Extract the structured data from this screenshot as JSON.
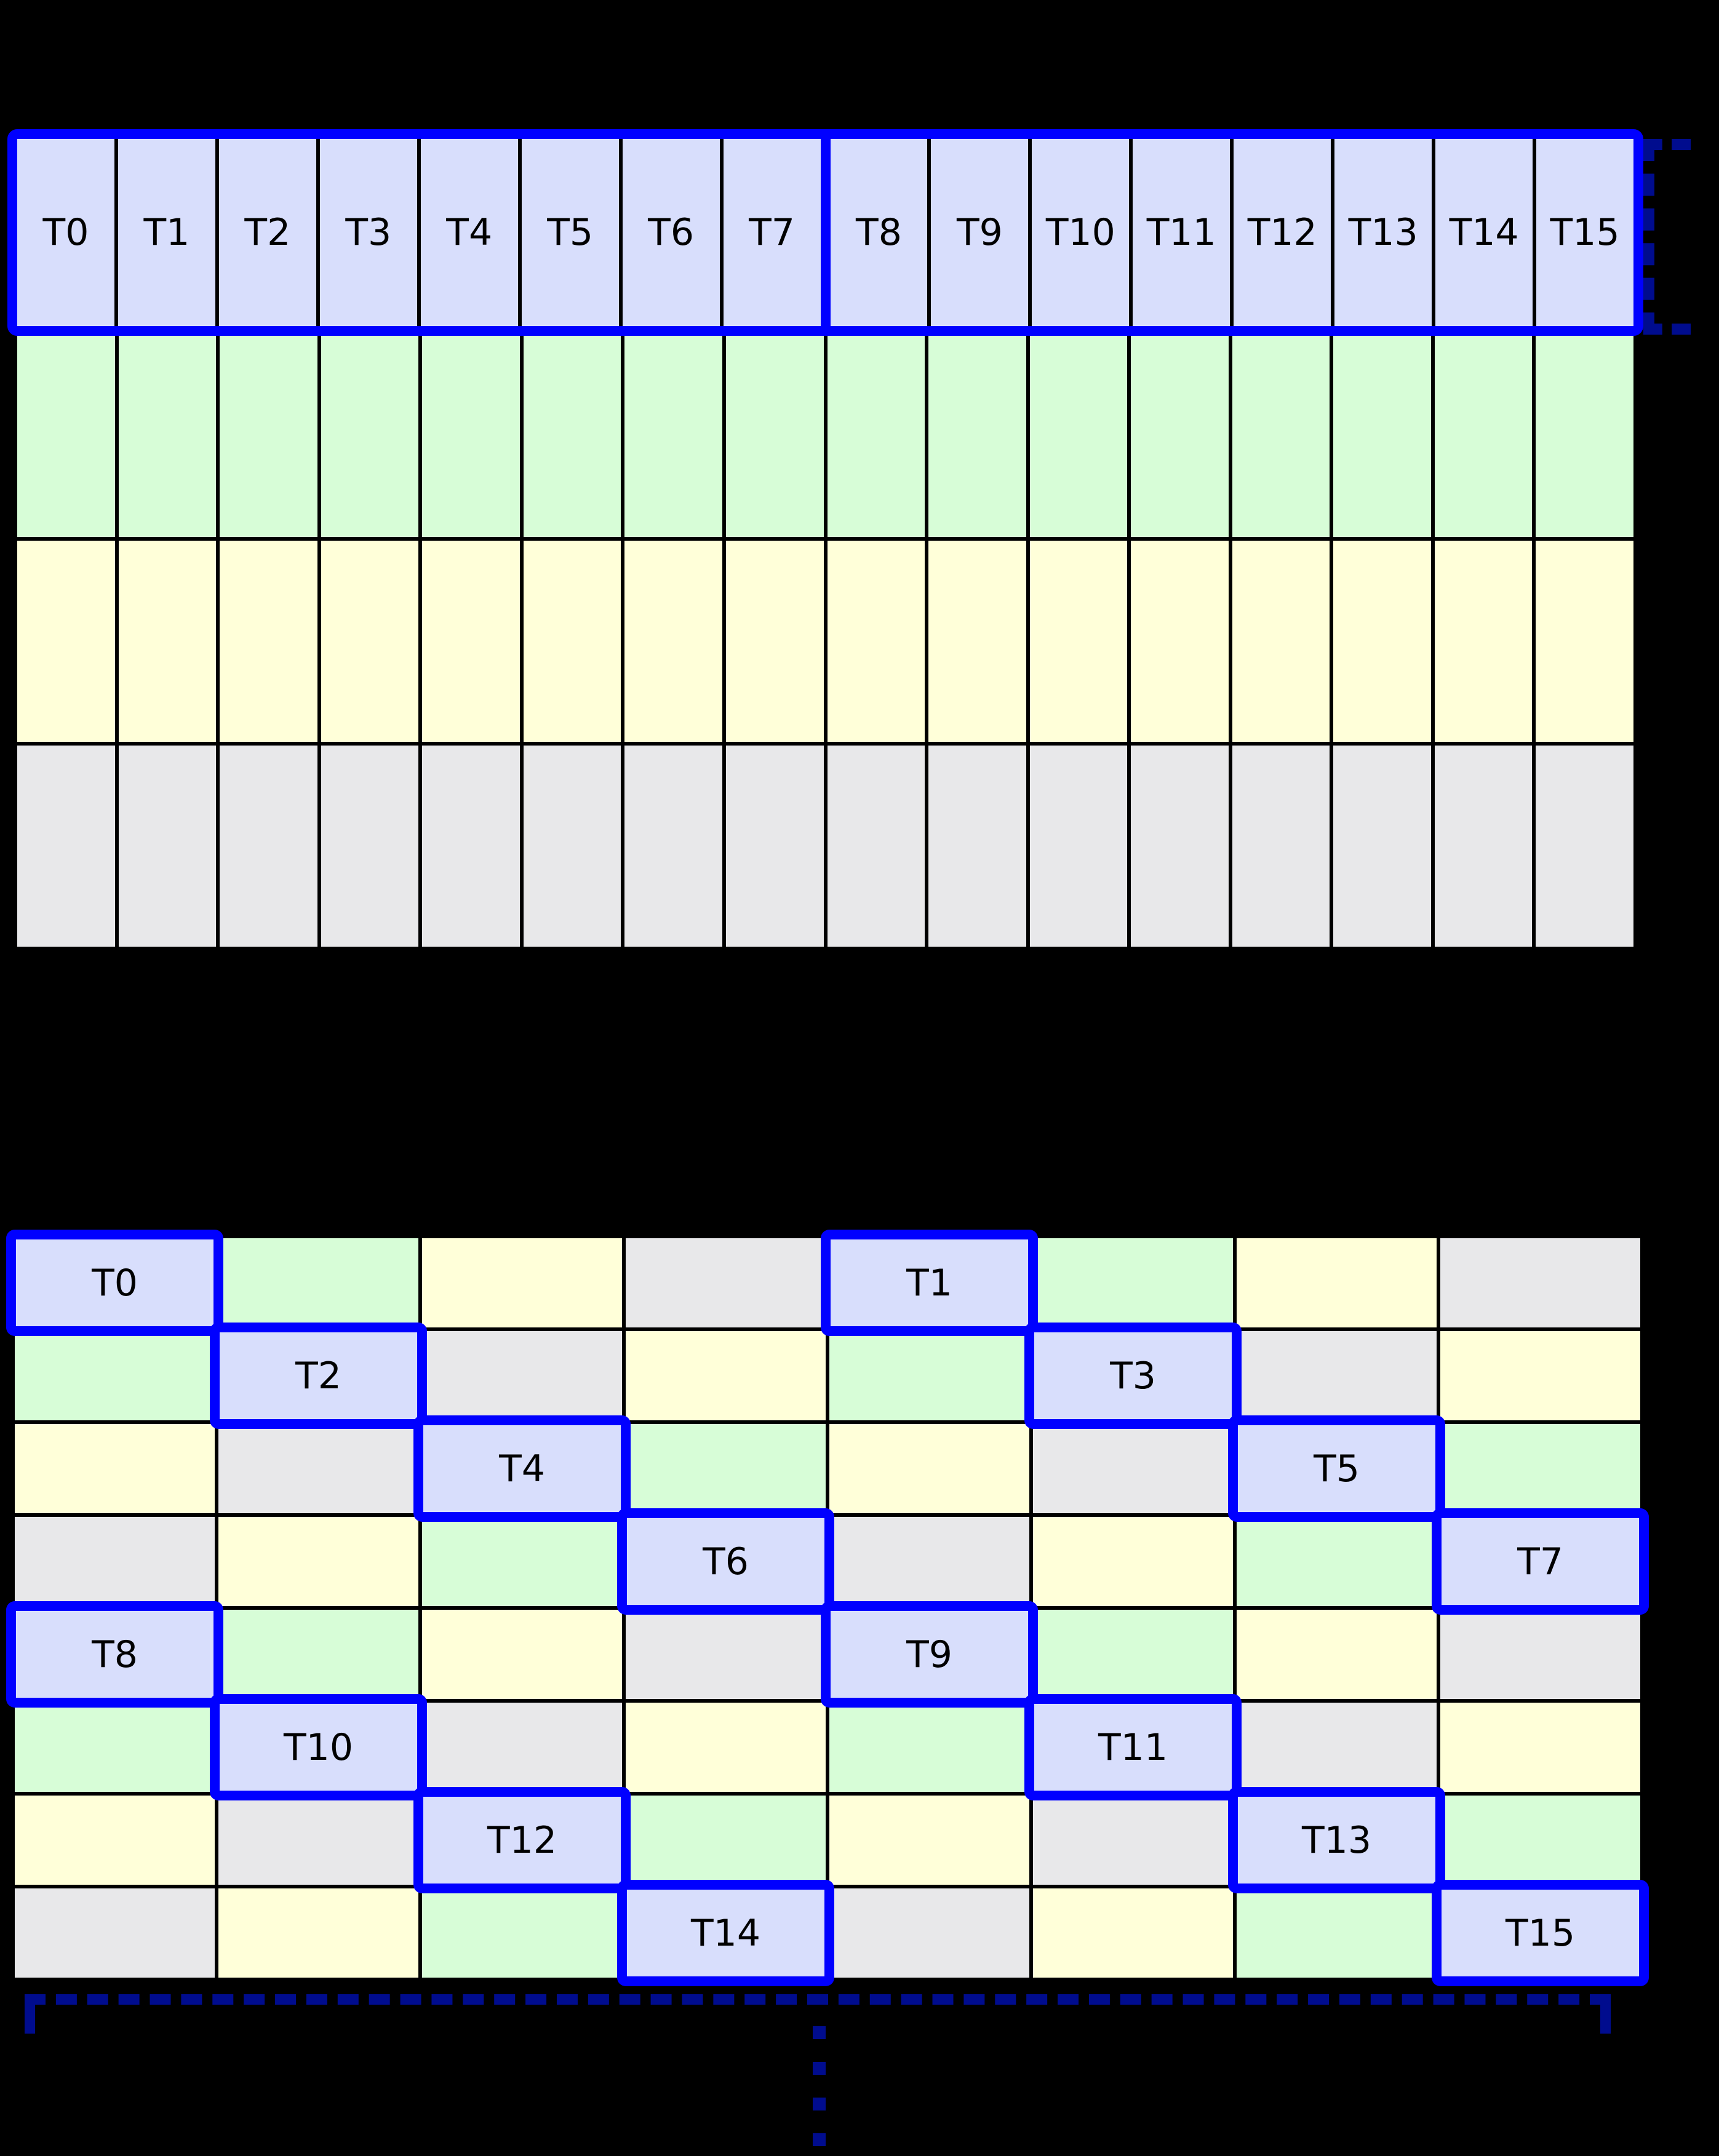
{
  "colors": {
    "background": "#000000",
    "grid_line": "#000000",
    "warp_border": "#0000ff",
    "bracket": "#000c8e",
    "palette": {
      "thread": "#d8defc",
      "green": "#d7fdd7",
      "yellow": "#ffffd9",
      "gray": "#e8e8ea"
    }
  },
  "top_grid": {
    "thread_groups": [
      {
        "threads": [
          "T0",
          "T1",
          "T2",
          "T3",
          "T4",
          "T5",
          "T6",
          "T7"
        ]
      },
      {
        "threads": [
          "T8",
          "T9",
          "T10",
          "T11",
          "T12",
          "T13",
          "T14",
          "T15"
        ]
      }
    ],
    "memory_rows": [
      "green",
      "yellow",
      "gray"
    ],
    "columns": 16
  },
  "right_bracket": {
    "icon": "dashed-bracket-icon",
    "style": "dashed",
    "color": "#000c8e"
  },
  "bottom_grid": {
    "rows": [
      [
        {
          "color": "thread",
          "label": "T0"
        },
        {
          "color": "green"
        },
        {
          "color": "yellow"
        },
        {
          "color": "gray"
        },
        {
          "color": "thread",
          "label": "T1"
        },
        {
          "color": "green"
        },
        {
          "color": "yellow"
        },
        {
          "color": "gray"
        }
      ],
      [
        {
          "color": "green"
        },
        {
          "color": "thread",
          "label": "T2"
        },
        {
          "color": "gray"
        },
        {
          "color": "yellow"
        },
        {
          "color": "green"
        },
        {
          "color": "thread",
          "label": "T3"
        },
        {
          "color": "gray"
        },
        {
          "color": "yellow"
        }
      ],
      [
        {
          "color": "yellow"
        },
        {
          "color": "gray"
        },
        {
          "color": "thread",
          "label": "T4"
        },
        {
          "color": "green"
        },
        {
          "color": "yellow"
        },
        {
          "color": "gray"
        },
        {
          "color": "thread",
          "label": "T5"
        },
        {
          "color": "green"
        }
      ],
      [
        {
          "color": "gray"
        },
        {
          "color": "yellow"
        },
        {
          "color": "green"
        },
        {
          "color": "thread",
          "label": "T6"
        },
        {
          "color": "gray"
        },
        {
          "color": "yellow"
        },
        {
          "color": "green"
        },
        {
          "color": "thread",
          "label": "T7"
        }
      ],
      [
        {
          "color": "thread",
          "label": "T8"
        },
        {
          "color": "green"
        },
        {
          "color": "yellow"
        },
        {
          "color": "gray"
        },
        {
          "color": "thread",
          "label": "T9"
        },
        {
          "color": "green"
        },
        {
          "color": "yellow"
        },
        {
          "color": "gray"
        }
      ],
      [
        {
          "color": "green"
        },
        {
          "color": "thread",
          "label": "T10"
        },
        {
          "color": "gray"
        },
        {
          "color": "yellow"
        },
        {
          "color": "green"
        },
        {
          "color": "thread",
          "label": "T11"
        },
        {
          "color": "gray"
        },
        {
          "color": "yellow"
        }
      ],
      [
        {
          "color": "yellow"
        },
        {
          "color": "gray"
        },
        {
          "color": "thread",
          "label": "T12"
        },
        {
          "color": "green"
        },
        {
          "color": "yellow"
        },
        {
          "color": "gray"
        },
        {
          "color": "thread",
          "label": "T13"
        },
        {
          "color": "green"
        }
      ],
      [
        {
          "color": "gray"
        },
        {
          "color": "yellow"
        },
        {
          "color": "green"
        },
        {
          "color": "thread",
          "label": "T14"
        },
        {
          "color": "gray"
        },
        {
          "color": "yellow"
        },
        {
          "color": "green"
        },
        {
          "color": "thread",
          "label": "T15"
        }
      ]
    ]
  },
  "bottom_bracket": {
    "icon": "dashed-underbracket-icon",
    "style": "dashed",
    "color": "#000c8e"
  },
  "continuation_ellipsis": {
    "icon": "vertical-ellipsis-icon",
    "dots": 4,
    "color": "#000c8e"
  }
}
